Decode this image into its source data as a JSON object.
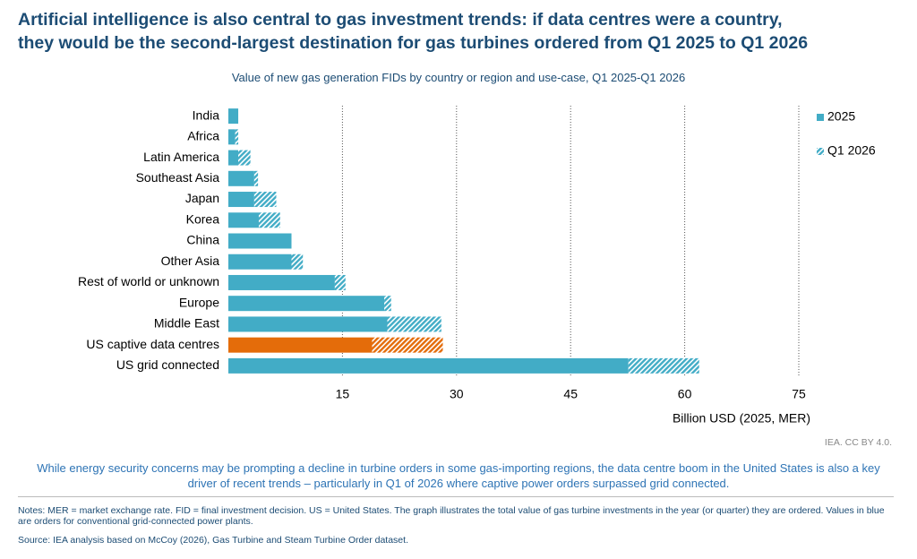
{
  "chart_data": {
    "type": "hbar_stacked",
    "title_lines": [
      "Artificial intelligence is also central to gas investment trends: if data centres were a country,",
      "they would be the second-largest destination for gas turbines ordered from Q1 2025 to Q1 2026"
    ],
    "subtitle": "Value of new gas generation FIDs by country or region and use-case, Q1 2025-Q1 2026",
    "categories": [
      "India",
      "Africa",
      "Latin America",
      "Southeast Asia",
      "Japan",
      "Korea",
      "China",
      "Other Asia",
      "Rest of world or unknown",
      "Europe",
      "Middle East",
      "US captive data centres",
      "US grid connected"
    ],
    "series": [
      {
        "name": "2025",
        "color": "#42acc6",
        "pattern": "solid",
        "point_colors": [
          "#42acc6",
          "#42acc6",
          "#42acc6",
          "#42acc6",
          "#42acc6",
          "#42acc6",
          "#42acc6",
          "#42acc6",
          "#42acc6",
          "#42acc6",
          "#42acc6",
          "#e46c0a",
          "#42acc6"
        ],
        "values": [
          1.3,
          0.9,
          1.3,
          3.4,
          3.4,
          4.0,
          8.3,
          8.3,
          14.0,
          20.5,
          20.9,
          18.9,
          52.6
        ]
      },
      {
        "name": "Q1 2026",
        "color": "#42acc6",
        "pattern": "hatched",
        "point_colors": [
          "#42acc6",
          "#42acc6",
          "#42acc6",
          "#42acc6",
          "#42acc6",
          "#42acc6",
          "#42acc6",
          "#42acc6",
          "#42acc6",
          "#42acc6",
          "#42acc6",
          "#e46c0a",
          "#42acc6"
        ],
        "values": [
          0,
          0.4,
          1.6,
          0.5,
          2.9,
          2.8,
          0,
          1.5,
          1.4,
          0.9,
          7.1,
          9.3,
          9.3
        ]
      }
    ],
    "xlim": [
      0,
      75
    ],
    "xticks": [
      15,
      30,
      45,
      60,
      75
    ],
    "grid": true,
    "xlabel": "Billion USD (2025, MER)",
    "legend": "right",
    "credit": "IEA. CC BY 4.0.",
    "caption": "While energy security concerns may be prompting a decline in turbine orders in some gas-importing regions, the data centre boom in the United States is also a key driver of recent trends – particularly in Q1 of 2026 where captive power orders surpassed grid connected.",
    "notes": "Notes: MER = market exchange rate. FID = final investment decision. US = United States. The graph illustrates the total value of gas turbine investments in the year (or quarter) they are ordered. Values in blue are orders for conventional grid-connected power plants.",
    "source": "Source: IEA analysis based on McCoy (2026), Gas Turbine and Steam Turbine Order dataset."
  }
}
